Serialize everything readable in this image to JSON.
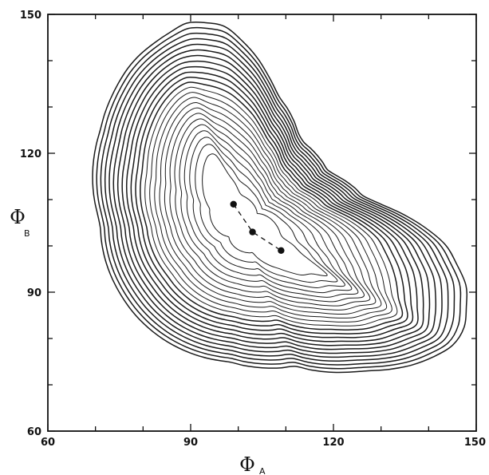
{
  "chart_data": {
    "type": "contour",
    "title": "",
    "xlabel": {
      "symbol": "Φ",
      "subscript": "A"
    },
    "ylabel": {
      "symbol": "Φ",
      "subscript": "B"
    },
    "xlim": [
      60,
      150
    ],
    "ylim": [
      60,
      150
    ],
    "x_ticks": [
      60,
      90,
      120,
      150
    ],
    "y_ticks": [
      60,
      90,
      120,
      150
    ],
    "x_tick_labels": [
      "60",
      "90",
      "120",
      "150"
    ],
    "y_tick_labels": [
      "60",
      "90",
      "120",
      "150"
    ],
    "minor_tick_step": 10,
    "grid": false,
    "contour_levels": 24,
    "contour_center": {
      "x": 101,
      "y": 104
    },
    "points": [
      {
        "x": 99,
        "y": 109
      },
      {
        "x": 103,
        "y": 103
      },
      {
        "x": 109,
        "y": 99
      }
    ],
    "path": {
      "style": "dashed",
      "through_points": true
    }
  }
}
